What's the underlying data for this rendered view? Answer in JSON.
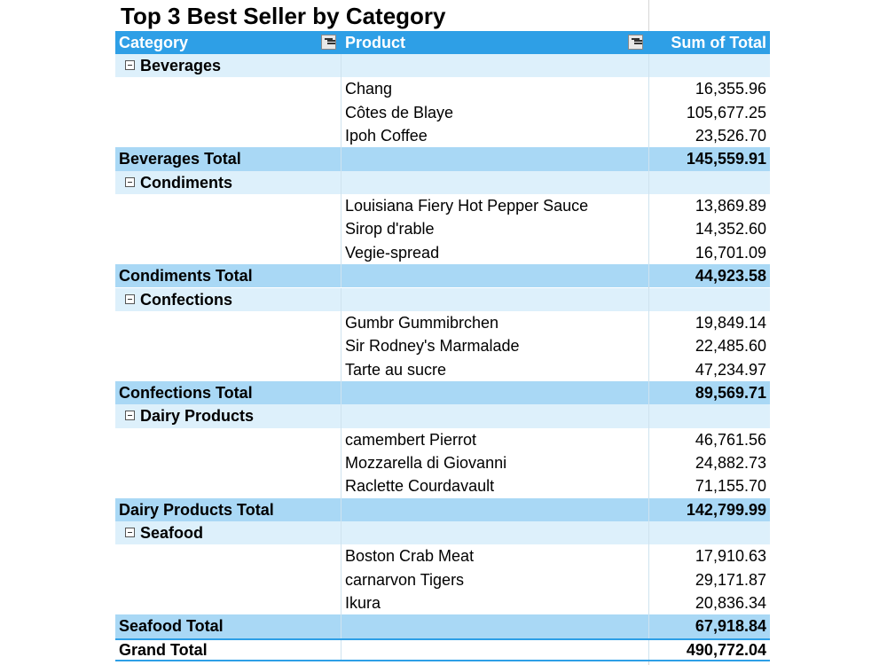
{
  "title": "Top 3 Best Seller by Category",
  "header": {
    "category": "Category",
    "product": "Product",
    "sum": "Sum of Total"
  },
  "groups": [
    {
      "name": "Beverages",
      "products": [
        [
          "Chang",
          "16,355.96"
        ],
        [
          "Côtes de Blaye",
          "105,677.25"
        ],
        [
          "Ipoh Coffee",
          "23,526.70"
        ]
      ],
      "total_label": "Beverages Total",
      "total": "145,559.91"
    },
    {
      "name": "Condiments",
      "products": [
        [
          "Louisiana Fiery Hot Pepper Sauce",
          "13,869.89"
        ],
        [
          "Sirop d'rable",
          "14,352.60"
        ],
        [
          "Vegie-spread",
          "16,701.09"
        ]
      ],
      "total_label": "Condiments Total",
      "total": "44,923.58"
    },
    {
      "name": "Confections",
      "products": [
        [
          "Gumbr Gummibrchen",
          "19,849.14"
        ],
        [
          "Sir Rodney's Marmalade",
          "22,485.60"
        ],
        [
          "Tarte au sucre",
          "47,234.97"
        ]
      ],
      "total_label": "Confections Total",
      "total": "89,569.71"
    },
    {
      "name": "Dairy Products",
      "products": [
        [
          "camembert Pierrot",
          "46,761.56"
        ],
        [
          "Mozzarella di Giovanni",
          "24,882.73"
        ],
        [
          "Raclette Courdavault",
          "71,155.70"
        ]
      ],
      "total_label": "Dairy Products Total",
      "total": "142,799.99"
    },
    {
      "name": "Seafood",
      "products": [
        [
          "Boston Crab Meat",
          "17,910.63"
        ],
        [
          "carnarvon Tigers",
          "29,171.87"
        ],
        [
          "Ikura",
          "20,836.34"
        ]
      ],
      "total_label": "Seafood Total",
      "total": "67,918.84"
    }
  ],
  "grand_total": {
    "label": "Grand Total",
    "value": "490,772.04"
  }
}
